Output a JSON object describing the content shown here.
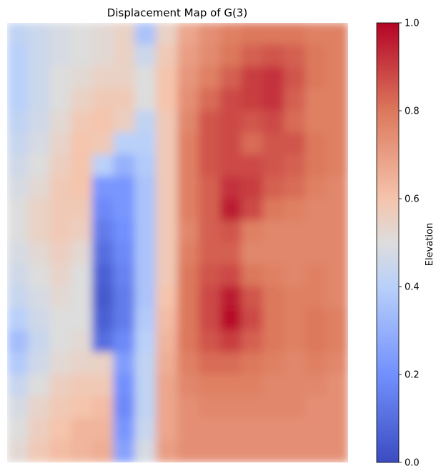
{
  "chart_data": {
    "type": "heatmap",
    "title": "Displacement Map of G(3)",
    "colormap": "coolwarm",
    "colorbar": {
      "label": "Elevation",
      "range": [
        0.0,
        1.0
      ],
      "ticks": [
        0.0,
        0.2,
        0.4,
        0.6,
        0.8,
        1.0
      ],
      "tick_labels": [
        "0.0",
        "0.2",
        "0.4",
        "0.6",
        "0.8",
        "1.0"
      ]
    },
    "axes_visible": false,
    "grid_rows": 20,
    "grid_cols": 16,
    "values": [
      [
        0.42,
        0.45,
        0.48,
        0.5,
        0.52,
        0.55,
        0.36,
        0.55,
        0.68,
        0.74,
        0.78,
        0.8,
        0.8,
        0.8,
        0.78,
        0.78
      ],
      [
        0.4,
        0.45,
        0.48,
        0.5,
        0.52,
        0.55,
        0.45,
        0.58,
        0.7,
        0.75,
        0.8,
        0.84,
        0.86,
        0.84,
        0.8,
        0.78
      ],
      [
        0.4,
        0.45,
        0.5,
        0.52,
        0.55,
        0.55,
        0.5,
        0.6,
        0.72,
        0.78,
        0.84,
        0.9,
        0.92,
        0.86,
        0.8,
        0.78
      ],
      [
        0.4,
        0.45,
        0.5,
        0.55,
        0.58,
        0.58,
        0.5,
        0.6,
        0.74,
        0.82,
        0.88,
        0.9,
        0.92,
        0.84,
        0.78,
        0.78
      ],
      [
        0.42,
        0.46,
        0.52,
        0.58,
        0.6,
        0.56,
        0.42,
        0.58,
        0.76,
        0.86,
        0.88,
        0.86,
        0.88,
        0.82,
        0.78,
        0.78
      ],
      [
        0.44,
        0.48,
        0.54,
        0.6,
        0.58,
        0.4,
        0.4,
        0.58,
        0.78,
        0.86,
        0.88,
        0.82,
        0.86,
        0.86,
        0.8,
        0.78
      ],
      [
        0.46,
        0.5,
        0.56,
        0.6,
        0.4,
        0.3,
        0.38,
        0.58,
        0.78,
        0.86,
        0.88,
        0.88,
        0.86,
        0.84,
        0.8,
        0.78
      ],
      [
        0.48,
        0.52,
        0.58,
        0.6,
        0.22,
        0.22,
        0.36,
        0.58,
        0.78,
        0.84,
        0.92,
        0.9,
        0.84,
        0.82,
        0.78,
        0.76
      ],
      [
        0.5,
        0.55,
        0.58,
        0.58,
        0.18,
        0.22,
        0.36,
        0.58,
        0.78,
        0.84,
        0.96,
        0.88,
        0.8,
        0.78,
        0.76,
        0.76
      ],
      [
        0.5,
        0.55,
        0.58,
        0.56,
        0.14,
        0.2,
        0.36,
        0.58,
        0.76,
        0.84,
        0.86,
        0.78,
        0.76,
        0.76,
        0.76,
        0.76
      ],
      [
        0.48,
        0.52,
        0.56,
        0.52,
        0.1,
        0.18,
        0.36,
        0.58,
        0.78,
        0.84,
        0.84,
        0.76,
        0.76,
        0.76,
        0.76,
        0.76
      ],
      [
        0.46,
        0.5,
        0.54,
        0.5,
        0.06,
        0.16,
        0.36,
        0.58,
        0.8,
        0.86,
        0.88,
        0.8,
        0.78,
        0.76,
        0.78,
        0.76
      ],
      [
        0.44,
        0.48,
        0.52,
        0.5,
        0.04,
        0.14,
        0.36,
        0.6,
        0.8,
        0.88,
        0.96,
        0.86,
        0.8,
        0.78,
        0.78,
        0.76
      ],
      [
        0.4,
        0.46,
        0.5,
        0.5,
        0.06,
        0.14,
        0.38,
        0.62,
        0.8,
        0.88,
        0.98,
        0.88,
        0.8,
        0.78,
        0.8,
        0.78
      ],
      [
        0.34,
        0.44,
        0.5,
        0.52,
        0.1,
        0.18,
        0.4,
        0.64,
        0.8,
        0.86,
        0.9,
        0.84,
        0.8,
        0.78,
        0.8,
        0.78
      ],
      [
        0.38,
        0.46,
        0.52,
        0.54,
        0.55,
        0.24,
        0.42,
        0.66,
        0.78,
        0.82,
        0.82,
        0.8,
        0.78,
        0.76,
        0.78,
        0.76
      ],
      [
        0.44,
        0.5,
        0.56,
        0.58,
        0.58,
        0.2,
        0.42,
        0.68,
        0.76,
        0.78,
        0.78,
        0.78,
        0.76,
        0.76,
        0.76,
        0.74
      ],
      [
        0.48,
        0.54,
        0.58,
        0.6,
        0.62,
        0.18,
        0.42,
        0.68,
        0.74,
        0.76,
        0.76,
        0.76,
        0.76,
        0.76,
        0.74,
        0.74
      ],
      [
        0.5,
        0.56,
        0.6,
        0.64,
        0.64,
        0.22,
        0.44,
        0.68,
        0.74,
        0.74,
        0.74,
        0.74,
        0.74,
        0.74,
        0.74,
        0.74
      ],
      [
        0.52,
        0.58,
        0.62,
        0.64,
        0.66,
        0.26,
        0.48,
        0.7,
        0.74,
        0.74,
        0.74,
        0.74,
        0.74,
        0.74,
        0.74,
        0.74
      ]
    ]
  }
}
